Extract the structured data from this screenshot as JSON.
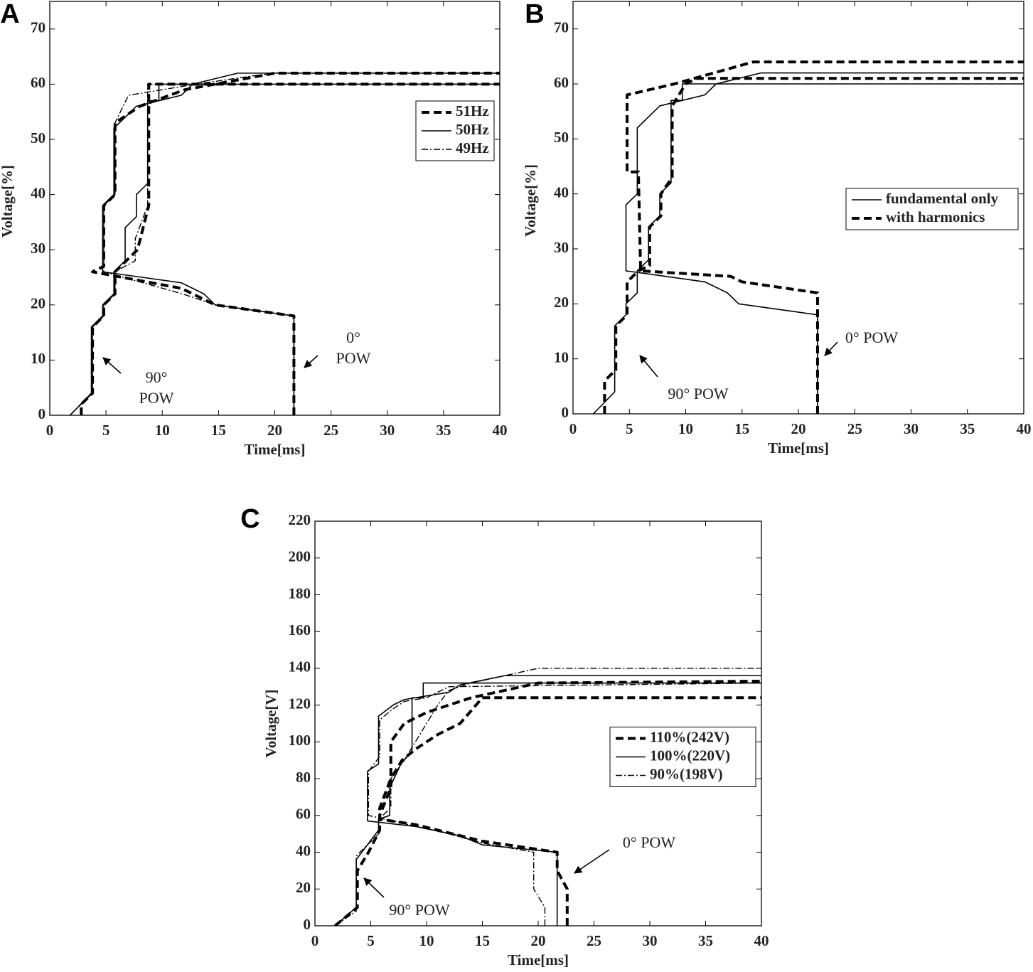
{
  "chart_data": [
    {
      "type": "line",
      "label": "A",
      "xlabel": "Time[ms]",
      "ylabel": "Voltage[%]",
      "xlim": [
        0,
        40
      ],
      "ylim": [
        0,
        75
      ],
      "xticks": [
        0,
        5,
        10,
        15,
        20,
        25,
        30,
        35,
        40
      ],
      "yticks": [
        0,
        10,
        20,
        30,
        40,
        50,
        60,
        70
      ],
      "legend": "upper right",
      "annotations": [
        {
          "lines": [
            "0°",
            "POW"
          ]
        },
        {
          "lines": [
            "90°",
            "POW"
          ]
        }
      ],
      "series": [
        {
          "name": "51Hz",
          "color": "#000000",
          "style": "dashed",
          "x": [
            2.8,
            2.8,
            3.8,
            3.8,
            4.8,
            4.8,
            5.8,
            5.8,
            7.8,
            8.8,
            8.8,
            40,
            null,
            21.7,
            21.7,
            14.7,
            12.7,
            11.7,
            3.8,
            4.8,
            4.8,
            5.8,
            5.8,
            8,
            12,
            20,
            40
          ],
          "values": [
            0,
            2,
            4,
            16,
            18,
            20,
            22,
            26,
            30,
            38,
            60,
            60,
            null,
            0,
            18,
            20,
            22,
            23,
            26,
            27,
            38,
            40,
            53,
            56,
            59,
            62,
            62
          ]
        },
        {
          "name": "50Hz",
          "color": "#000000",
          "style": "solid",
          "x": [
            1.8,
            3.7,
            3.7,
            4.7,
            4.7,
            5.7,
            5.7,
            6.7,
            6.7,
            7.7,
            7.7,
            8.7,
            8.7,
            9.7,
            9.7,
            40,
            null,
            21.7,
            21.7,
            14.7,
            13.7,
            11.7,
            4.7,
            4.7,
            5.7,
            5.7,
            7.7,
            11.7,
            12.7,
            16.7,
            40
          ],
          "values": [
            0,
            4,
            16,
            18,
            20,
            22,
            26,
            28,
            34,
            36,
            40,
            42,
            57,
            57,
            60,
            60,
            null,
            0,
            18,
            20,
            22,
            24,
            26,
            38,
            40,
            52,
            56,
            58,
            60,
            62,
            62
          ]
        },
        {
          "name": "49Hz",
          "color": "#000000",
          "style": "dashdot",
          "x": [
            1.8,
            3.8,
            3.8,
            4.8,
            4.8,
            5.8,
            5.8,
            7.6,
            7.6,
            8.7,
            8.7,
            40,
            null,
            21.7,
            21.7,
            14.7,
            11.8,
            4.8,
            4.8,
            5.8,
            5.8,
            7,
            13,
            18,
            20,
            40
          ],
          "values": [
            0,
            4,
            16,
            18,
            20,
            22,
            26,
            28,
            32,
            38,
            60,
            60,
            null,
            0,
            18,
            20,
            22,
            26,
            38,
            40,
            53,
            58,
            60,
            61.5,
            62,
            62
          ]
        }
      ]
    },
    {
      "type": "line",
      "label": "B",
      "xlabel": "Time[ms]",
      "ylabel": "Voltage[%]",
      "xlim": [
        0,
        40
      ],
      "ylim": [
        0,
        75
      ],
      "xticks": [
        0,
        5,
        10,
        15,
        20,
        25,
        30,
        35,
        40
      ],
      "yticks": [
        0,
        10,
        20,
        30,
        40,
        50,
        60,
        70
      ],
      "legend": "upper right",
      "annotations": [
        {
          "lines": [
            "0° POW"
          ]
        },
        {
          "lines": [
            "90° POW"
          ]
        }
      ],
      "series": [
        {
          "name": "fundamental only",
          "color": "#000000",
          "style": "solid",
          "x": [
            1.8,
            3.7,
            3.7,
            4.7,
            4.7,
            5.7,
            5.7,
            6.7,
            6.7,
            7.7,
            7.7,
            8.7,
            8.7,
            9.7,
            9.7,
            40,
            null,
            21.7,
            21.7,
            14.7,
            13.7,
            11.7,
            4.7,
            4.7,
            5.7,
            5.7,
            7.7,
            11.7,
            12.7,
            16.7,
            40
          ],
          "values": [
            0,
            4,
            16,
            18,
            20,
            22,
            26,
            28,
            34,
            36,
            40,
            42,
            57,
            57,
            60,
            60,
            null,
            0,
            18,
            20,
            22,
            24,
            26,
            38,
            40,
            52,
            56,
            58,
            60,
            62,
            62
          ]
        },
        {
          "name": "with harmonics",
          "color": "#000000",
          "style": "dashed",
          "x": [
            2.8,
            2.8,
            3.8,
            3.8,
            4.8,
            4.8,
            5.8,
            6.8,
            6.8,
            7.8,
            7.8,
            8.8,
            8.8,
            10,
            11,
            40,
            null,
            21.7,
            21.7,
            15,
            14,
            6,
            5.8,
            4.8,
            4.8,
            9,
            16,
            40
          ],
          "values": [
            0,
            6,
            8,
            16,
            18,
            24,
            26,
            27,
            34,
            36,
            40,
            43,
            56,
            60,
            61,
            61,
            null,
            0,
            22,
            24,
            25,
            26,
            44,
            44,
            58,
            60,
            64,
            64
          ]
        }
      ]
    },
    {
      "type": "line",
      "label": "C",
      "xlabel": "Time[ms]",
      "ylabel": "Voltage[V]",
      "xlim": [
        0,
        40
      ],
      "ylim": [
        0,
        220
      ],
      "xticks": [
        0,
        5,
        10,
        15,
        20,
        25,
        30,
        35,
        40
      ],
      "yticks": [
        0,
        20,
        40,
        60,
        80,
        100,
        120,
        140,
        160,
        180,
        200,
        220
      ],
      "legend": "center right",
      "annotations": [
        {
          "lines": [
            "0° POW"
          ]
        },
        {
          "lines": [
            "90° POW"
          ]
        }
      ],
      "series": [
        {
          "name": "110%(242V)",
          "color": "#000000",
          "style": "dashed",
          "x": [
            1.8,
            3.8,
            3.8,
            4.8,
            5.8,
            5.8,
            6.8,
            6.8,
            7.8,
            9,
            11,
            13,
            15,
            40,
            null,
            22.6,
            22.6,
            21.7,
            21.7,
            15,
            9,
            5.8,
            5.8,
            6.8,
            6.8,
            8,
            10,
            14,
            20,
            40
          ],
          "values": [
            0,
            10,
            30,
            40,
            52,
            60,
            75,
            80,
            90,
            96,
            104,
            110,
            124,
            124,
            null,
            0,
            20,
            30,
            40,
            46,
            55,
            58,
            64,
            80,
            100,
            110,
            116,
            124,
            132,
            133
          ]
        },
        {
          "name": "100%(220V)",
          "color": "#000000",
          "style": "solid",
          "x": [
            1.8,
            3.7,
            3.7,
            4.7,
            5.7,
            5.7,
            6.7,
            6.7,
            7.7,
            8.7,
            8.7,
            9.7,
            9.7,
            40,
            null,
            21.7,
            21.7,
            15,
            13,
            9,
            4.7,
            4.7,
            5.7,
            5.7,
            7,
            8,
            12,
            13,
            17,
            40
          ],
          "values": [
            0,
            10,
            36,
            44,
            52,
            58,
            60,
            75,
            88,
            95,
            124,
            124,
            132,
            132,
            null,
            0,
            40,
            44,
            49,
            54,
            57,
            84,
            88,
            114,
            120,
            123,
            127,
            131,
            136,
            136
          ]
        },
        {
          "name": "90%(198V)",
          "color": "#000000",
          "style": "dashdot",
          "x": [
            1.8,
            3.7,
            3.7,
            4.7,
            5.7,
            5.7,
            6.8,
            6.8,
            8,
            9,
            10,
            11,
            12,
            14,
            20,
            40,
            null,
            20.6,
            20.6,
            19.6,
            19.6,
            15,
            12,
            4.8,
            4.8,
            5.8,
            5.8,
            7,
            8,
            10,
            12,
            40
          ],
          "values": [
            0,
            8,
            38,
            44,
            50,
            58,
            64,
            80,
            90,
            100,
            110,
            120,
            128,
            132,
            140,
            140,
            null,
            0,
            10,
            20,
            40,
            45,
            50,
            60,
            84,
            92,
            112,
            118,
            122,
            124,
            130,
            132
          ]
        }
      ]
    }
  ]
}
